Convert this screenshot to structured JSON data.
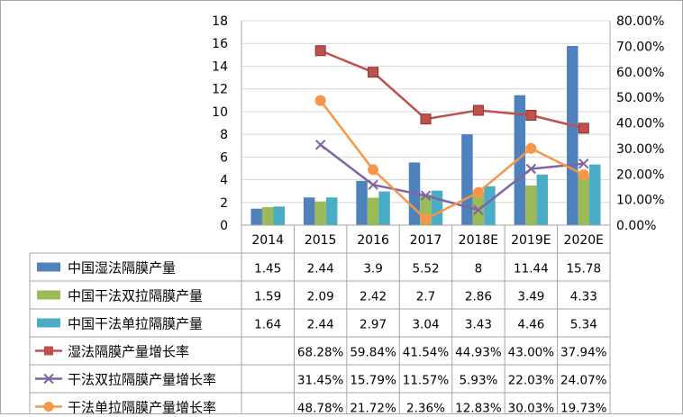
{
  "chart_data": {
    "type": "bar",
    "categories": [
      "2014",
      "2015",
      "2016",
      "2017",
      "2018E",
      "2019E",
      "2020E"
    ],
    "left_axis": {
      "min": 0,
      "max": 18,
      "step": 2,
      "ticks": [
        "0",
        "2",
        "4",
        "6",
        "8",
        "10",
        "12",
        "14",
        "16",
        "18"
      ]
    },
    "right_axis": {
      "min": 0,
      "max": 0.8,
      "step": 0.1,
      "ticks": [
        "0.00%",
        "10.00%",
        "20.00%",
        "30.00%",
        "40.00%",
        "50.00%",
        "60.00%",
        "70.00%",
        "80.00%"
      ]
    },
    "series": [
      {
        "name": "中国湿法隔膜产量",
        "kind": "bar",
        "color": "#4f81bd",
        "values": [
          1.45,
          2.44,
          3.9,
          5.52,
          8,
          11.44,
          15.78
        ],
        "labels": [
          "1.45",
          "2.44",
          "3.9",
          "5.52",
          "8",
          "11.44",
          "15.78"
        ]
      },
      {
        "name": "中国干法双拉隔膜产量",
        "kind": "bar",
        "color": "#9bbb59",
        "values": [
          1.59,
          2.09,
          2.42,
          2.7,
          2.86,
          3.49,
          4.33
        ],
        "labels": [
          "1.59",
          "2.09",
          "2.42",
          "2.7",
          "2.86",
          "3.49",
          "4.33"
        ]
      },
      {
        "name": "中国干法单拉隔膜产量",
        "kind": "bar",
        "color": "#4bacc6",
        "values": [
          1.64,
          2.44,
          2.97,
          3.04,
          3.43,
          4.46,
          5.34
        ],
        "labels": [
          "1.64",
          "2.44",
          "2.97",
          "3.04",
          "3.43",
          "4.46",
          "5.34"
        ]
      },
      {
        "name": "湿法隔膜产量增长率",
        "kind": "line",
        "marker": "square",
        "color": "#c0504d",
        "values": [
          null,
          0.6828,
          0.5984,
          0.4154,
          0.4493,
          0.43,
          0.3794
        ],
        "labels": [
          "",
          "68.28%",
          "59.84%",
          "41.54%",
          "44.93%",
          "43.00%",
          "37.94%"
        ]
      },
      {
        "name": "干法双拉隔膜产量增长率",
        "kind": "line",
        "marker": "x",
        "color": "#8064a2",
        "values": [
          null,
          0.3145,
          0.1579,
          0.1157,
          0.0593,
          0.2203,
          0.2407
        ],
        "labels": [
          "",
          "31.45%",
          "15.79%",
          "11.57%",
          "5.93%",
          "22.03%",
          "24.07%"
        ]
      },
      {
        "name": "干法单拉隔膜产量增长率",
        "kind": "line",
        "marker": "circle",
        "color": "#f79646",
        "values": [
          null,
          0.4878,
          0.2172,
          0.0236,
          0.1283,
          0.3003,
          0.1973
        ],
        "labels": [
          "",
          "48.78%",
          "21.72%",
          "2.36%",
          "12.83%",
          "30.03%",
          "19.73%"
        ]
      }
    ],
    "grid": true,
    "legend": "data-table"
  }
}
